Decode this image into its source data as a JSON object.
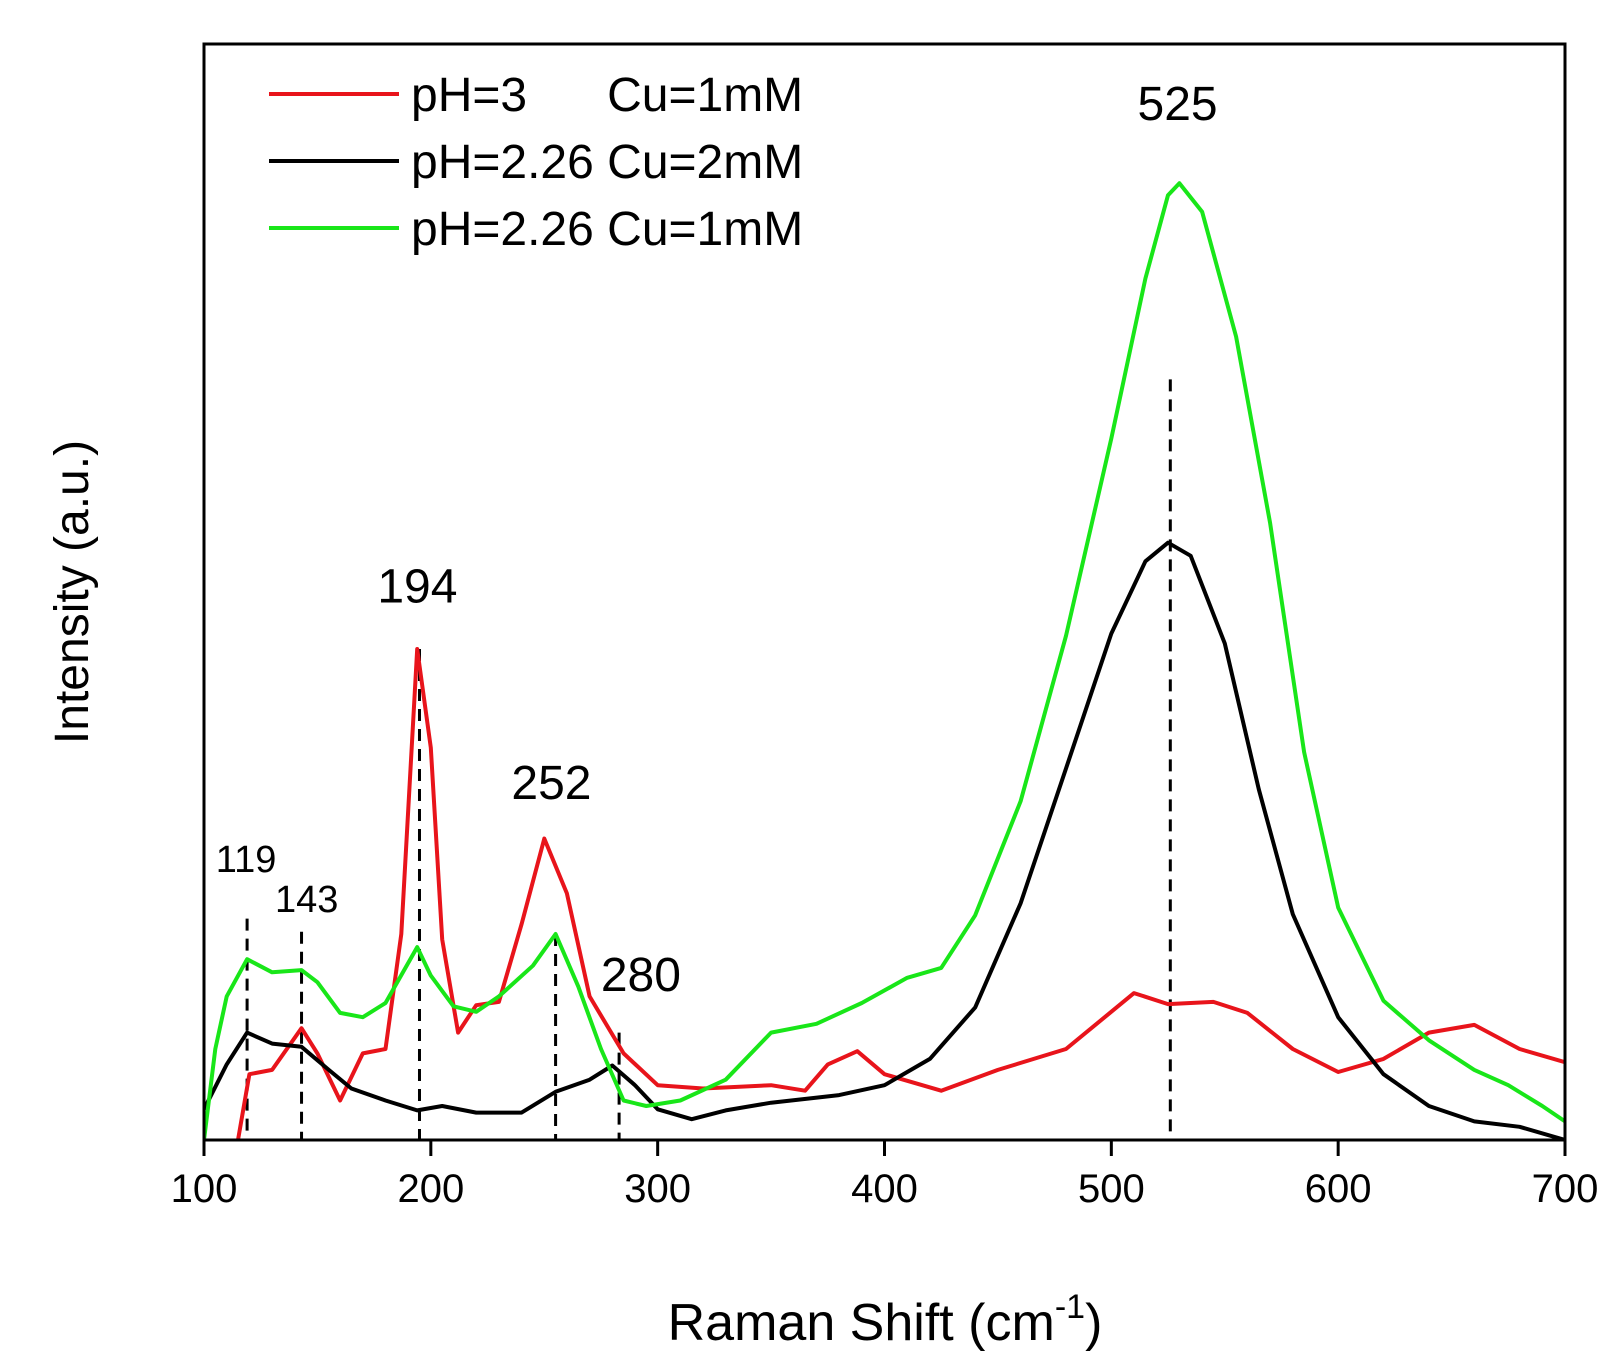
{
  "chart_data": {
    "type": "line",
    "xlabel": {
      "text": "Raman Shift (cm",
      "sup": "-1",
      "tail": ")"
    },
    "ylabel": "Intensity (a.u.)",
    "xlim": [
      100,
      700
    ],
    "xticks": [
      100,
      200,
      300,
      400,
      500,
      600,
      700
    ],
    "ylim": [
      0,
      100
    ],
    "legend": "upper left",
    "series": [
      {
        "name": "pH=3      Cu=1mM",
        "color": "#e8141b",
        "x": [
          115,
          120,
          130,
          143,
          150,
          160,
          170,
          180,
          187,
          194,
          200,
          205,
          212,
          220,
          230,
          240,
          250,
          260,
          270,
          285,
          300,
          320,
          350,
          365,
          375,
          388,
          400,
          425,
          450,
          480,
          510,
          525,
          545,
          560,
          580,
          600,
          620,
          640,
          660,
          680,
          700
        ],
        "values": [
          0,
          6.0,
          6.4,
          10.2,
          7.9,
          3.6,
          7.9,
          8.3,
          18.8,
          44.8,
          35.8,
          18.3,
          9.8,
          12.3,
          12.6,
          19.7,
          27.5,
          22.5,
          13.1,
          7.9,
          5.0,
          4.7,
          5.0,
          4.5,
          6.9,
          8.1,
          6.0,
          4.5,
          6.4,
          8.3,
          13.4,
          12.4,
          12.6,
          11.6,
          8.3,
          6.2,
          7.4,
          9.8,
          10.5,
          8.3,
          7.1
        ]
      },
      {
        "name": "pH=2.26 Cu=2mM",
        "color": "#000000",
        "x": [
          100,
          110,
          119,
          130,
          143,
          155,
          165,
          180,
          194,
          205,
          220,
          240,
          255,
          270,
          280,
          290,
          300,
          315,
          330,
          350,
          380,
          400,
          420,
          440,
          460,
          480,
          500,
          515,
          525,
          535,
          550,
          565,
          580,
          600,
          620,
          640,
          660,
          680,
          700
        ],
        "values": [
          2.8,
          6.9,
          9.8,
          8.8,
          8.5,
          6.4,
          4.7,
          3.6,
          2.7,
          3.1,
          2.5,
          2.5,
          4.4,
          5.5,
          6.8,
          5.0,
          2.8,
          1.9,
          2.7,
          3.4,
          4.1,
          5.0,
          7.4,
          12.1,
          21.6,
          33.9,
          46.2,
          52.8,
          54.5,
          53.3,
          45.3,
          32.0,
          20.6,
          11.2,
          6.0,
          3.1,
          1.7,
          1.2,
          0
        ]
      },
      {
        "name": "pH=2.26 Cu=1mM",
        "color": "#19e619",
        "x": [
          100,
          105,
          110,
          119,
          130,
          143,
          150,
          160,
          170,
          180,
          194,
          200,
          210,
          220,
          230,
          245,
          255,
          265,
          275,
          285,
          295,
          310,
          330,
          350,
          370,
          390,
          410,
          425,
          440,
          460,
          480,
          500,
          515,
          525,
          530,
          540,
          555,
          570,
          585,
          600,
          620,
          640,
          660,
          675,
          690,
          700
        ],
        "values": [
          0,
          8.3,
          13.1,
          16.5,
          15.3,
          15.5,
          14.4,
          11.6,
          11.2,
          12.5,
          17.6,
          15.0,
          12.2,
          11.7,
          13.1,
          15.9,
          18.8,
          14.0,
          8.3,
          3.6,
          3.1,
          3.6,
          5.5,
          9.8,
          10.6,
          12.5,
          14.8,
          15.7,
          20.5,
          30.9,
          46.0,
          64.0,
          78.6,
          86.2,
          87.3,
          84.7,
          73.3,
          56.3,
          35.4,
          21.2,
          12.7,
          9.1,
          6.4,
          5.0,
          3.1,
          1.7
        ]
      }
    ],
    "annotations": [
      {
        "text": "525",
        "x": 526,
        "y": 69.4
      },
      {
        "text": "194",
        "x": 195,
        "y": 44.8
      },
      {
        "text": "252",
        "x": 255,
        "y": 18.8
      },
      {
        "text": "119",
        "x": 119,
        "y": 20.2
      },
      {
        "text": "143",
        "x": 143,
        "y": 19.0
      },
      {
        "text": "280",
        "x": 283,
        "y": 9.8
      }
    ]
  }
}
